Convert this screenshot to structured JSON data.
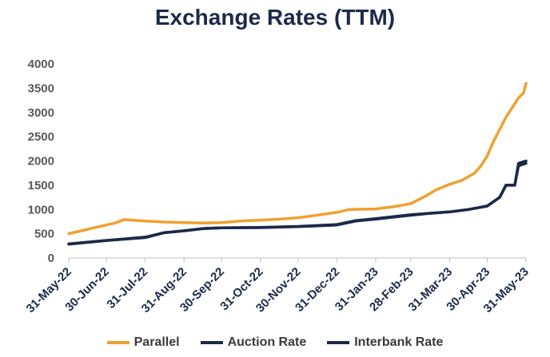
{
  "chart_data": {
    "type": "line",
    "title": "Exchange Rates (TTM)",
    "xlabel": "",
    "ylabel": "",
    "ylim": [
      0,
      4000
    ],
    "yticks": [
      0,
      500,
      1000,
      1500,
      2000,
      2500,
      3000,
      3500,
      4000
    ],
    "xticks": [
      "31-May-22",
      "30-Jun-22",
      "31-Jul-22",
      "31-Aug-22",
      "30-Sep-22",
      "31-Oct-22",
      "30-Nov-22",
      "31-Dec-22",
      "31-Jan-23",
      "28-Feb-23",
      "31-Mar-23",
      "30-Apr-23",
      "31-May-23"
    ],
    "grid": false,
    "legend": "bottom",
    "series": [
      {
        "name": "Parallel",
        "color": "#F0A030",
        "points": [
          [
            "2022-05-31",
            500
          ],
          [
            "2022-06-10",
            560
          ],
          [
            "2022-06-20",
            620
          ],
          [
            "2022-06-30",
            680
          ],
          [
            "2022-07-07",
            720
          ],
          [
            "2022-07-14",
            790
          ],
          [
            "2022-07-21",
            780
          ],
          [
            "2022-07-31",
            760
          ],
          [
            "2022-08-15",
            740
          ],
          [
            "2022-08-31",
            730
          ],
          [
            "2022-09-15",
            720
          ],
          [
            "2022-09-30",
            730
          ],
          [
            "2022-10-15",
            760
          ],
          [
            "2022-10-31",
            780
          ],
          [
            "2022-11-15",
            800
          ],
          [
            "2022-11-30",
            830
          ],
          [
            "2022-12-15",
            880
          ],
          [
            "2022-12-31",
            940
          ],
          [
            "2023-01-10",
            1000
          ],
          [
            "2023-01-31",
            1010
          ],
          [
            "2023-02-15",
            1060
          ],
          [
            "2023-02-28",
            1120
          ],
          [
            "2023-03-10",
            1250
          ],
          [
            "2023-03-20",
            1400
          ],
          [
            "2023-03-31",
            1520
          ],
          [
            "2023-04-10",
            1600
          ],
          [
            "2023-04-20",
            1750
          ],
          [
            "2023-04-25",
            1900
          ],
          [
            "2023-04-30",
            2100
          ],
          [
            "2023-05-05",
            2400
          ],
          [
            "2023-05-10",
            2650
          ],
          [
            "2023-05-15",
            2900
          ],
          [
            "2023-05-20",
            3100
          ],
          [
            "2023-05-25",
            3300
          ],
          [
            "2023-05-29",
            3400
          ],
          [
            "2023-05-31",
            3600
          ]
        ]
      },
      {
        "name": "Auction Rate",
        "color": "#1B2A4A",
        "points": [
          [
            "2022-05-31",
            285
          ],
          [
            "2022-06-30",
            360
          ],
          [
            "2022-07-31",
            420
          ],
          [
            "2022-08-15",
            520
          ],
          [
            "2022-08-31",
            560
          ],
          [
            "2022-09-15",
            605
          ],
          [
            "2022-09-30",
            620
          ],
          [
            "2022-10-31",
            625
          ],
          [
            "2022-11-30",
            645
          ],
          [
            "2022-12-31",
            680
          ],
          [
            "2023-01-15",
            760
          ],
          [
            "2023-01-31",
            800
          ],
          [
            "2023-02-28",
            880
          ],
          [
            "2023-03-15",
            920
          ],
          [
            "2023-03-31",
            950
          ],
          [
            "2023-04-15",
            1000
          ],
          [
            "2023-04-30",
            1070
          ],
          [
            "2023-05-10",
            1250
          ],
          [
            "2023-05-15",
            1500
          ],
          [
            "2023-05-22",
            1500
          ],
          [
            "2023-05-25",
            1900
          ],
          [
            "2023-05-31",
            1950
          ]
        ]
      },
      {
        "name": "Interbank Rate",
        "color": "#1B2A4A",
        "points": [
          [
            "2022-05-31",
            290
          ],
          [
            "2022-06-30",
            360
          ],
          [
            "2022-07-31",
            430
          ],
          [
            "2022-08-15",
            520
          ],
          [
            "2022-08-31",
            560
          ],
          [
            "2022-09-15",
            605
          ],
          [
            "2022-09-30",
            620
          ],
          [
            "2022-10-31",
            630
          ],
          [
            "2022-11-30",
            650
          ],
          [
            "2022-12-31",
            690
          ],
          [
            "2023-01-15",
            770
          ],
          [
            "2023-01-31",
            810
          ],
          [
            "2023-02-28",
            890
          ],
          [
            "2023-03-15",
            920
          ],
          [
            "2023-03-31",
            950
          ],
          [
            "2023-04-15",
            1000
          ],
          [
            "2023-04-30",
            1070
          ],
          [
            "2023-05-10",
            1250
          ],
          [
            "2023-05-15",
            1500
          ],
          [
            "2023-05-22",
            1500
          ],
          [
            "2023-05-25",
            1950
          ],
          [
            "2023-05-31",
            2000
          ]
        ]
      }
    ]
  }
}
